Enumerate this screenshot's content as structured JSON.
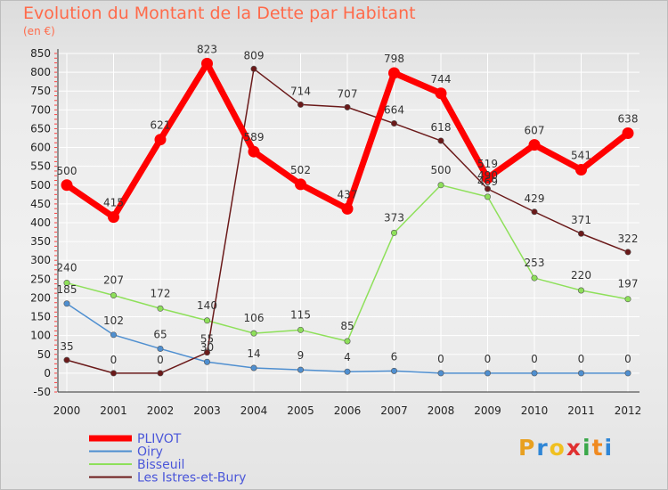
{
  "chart_data": {
    "type": "line",
    "title": "Evolution du Montant de la Dette par Habitant",
    "subtitle": "(en €)",
    "x": [
      2000,
      2001,
      2002,
      2003,
      2004,
      2005,
      2006,
      2007,
      2008,
      2009,
      2010,
      2011,
      2012
    ],
    "xticks": [
      "2000",
      "2001",
      "2002",
      "2003",
      "2004",
      "2005",
      "2006",
      "2007",
      "2008",
      "2009",
      "2010",
      "2011",
      "2012"
    ],
    "ylim": [
      -50,
      850
    ],
    "yticks": [
      "-50",
      "0",
      "50",
      "100",
      "150",
      "200",
      "250",
      "300",
      "350",
      "400",
      "450",
      "500",
      "550",
      "600",
      "650",
      "700",
      "750",
      "800",
      "850"
    ],
    "grid": true,
    "legend_position": "bottom-left",
    "series": [
      {
        "name": "PLIVOT",
        "color": "#ff0000",
        "values": [
          500,
          415,
          621,
          823,
          589,
          502,
          437,
          798,
          744,
          519,
          607,
          541,
          638
        ],
        "labels": [
          "500",
          "415",
          "621",
          "823",
          "589",
          "502",
          "437",
          "798",
          "744",
          "519",
          "607",
          "541",
          "638"
        ]
      },
      {
        "name": "Oiry",
        "color": "#4f8fd0",
        "values": [
          185,
          102,
          65,
          30,
          14,
          9,
          4,
          6,
          0,
          0,
          0,
          0,
          0
        ],
        "labels": [
          "185",
          "102",
          "65",
          "30",
          "14",
          "9",
          "4",
          "6",
          "0",
          "0",
          "0",
          "0",
          "0"
        ]
      },
      {
        "name": "Bisseuil",
        "color": "#8ee05a",
        "values": [
          240,
          207,
          172,
          140,
          106,
          115,
          85,
          373,
          500,
          469,
          253,
          220,
          197
        ],
        "labels": [
          "240",
          "207",
          "172",
          "140",
          "106",
          "115",
          "85",
          "373",
          "500",
          "469",
          "253",
          "220",
          "197"
        ]
      },
      {
        "name": "Les Istres-et-Bury",
        "color": "#6b1a1a",
        "values": [
          35,
          0,
          0,
          55,
          809,
          714,
          707,
          664,
          618,
          490,
          429,
          371,
          322
        ],
        "labels": [
          "35",
          "0",
          "0",
          "55",
          "809",
          "714",
          "707",
          "664",
          "618",
          "490",
          "429",
          "371",
          "322"
        ]
      }
    ]
  },
  "brand": {
    "letters": [
      "P",
      "r",
      "o",
      "x",
      "i",
      "t",
      "i"
    ],
    "colors": [
      "#e8a020",
      "#2f86d6",
      "#f0c020",
      "#e03030",
      "#3aa84a",
      "#f08a20",
      "#2f86d6"
    ]
  }
}
